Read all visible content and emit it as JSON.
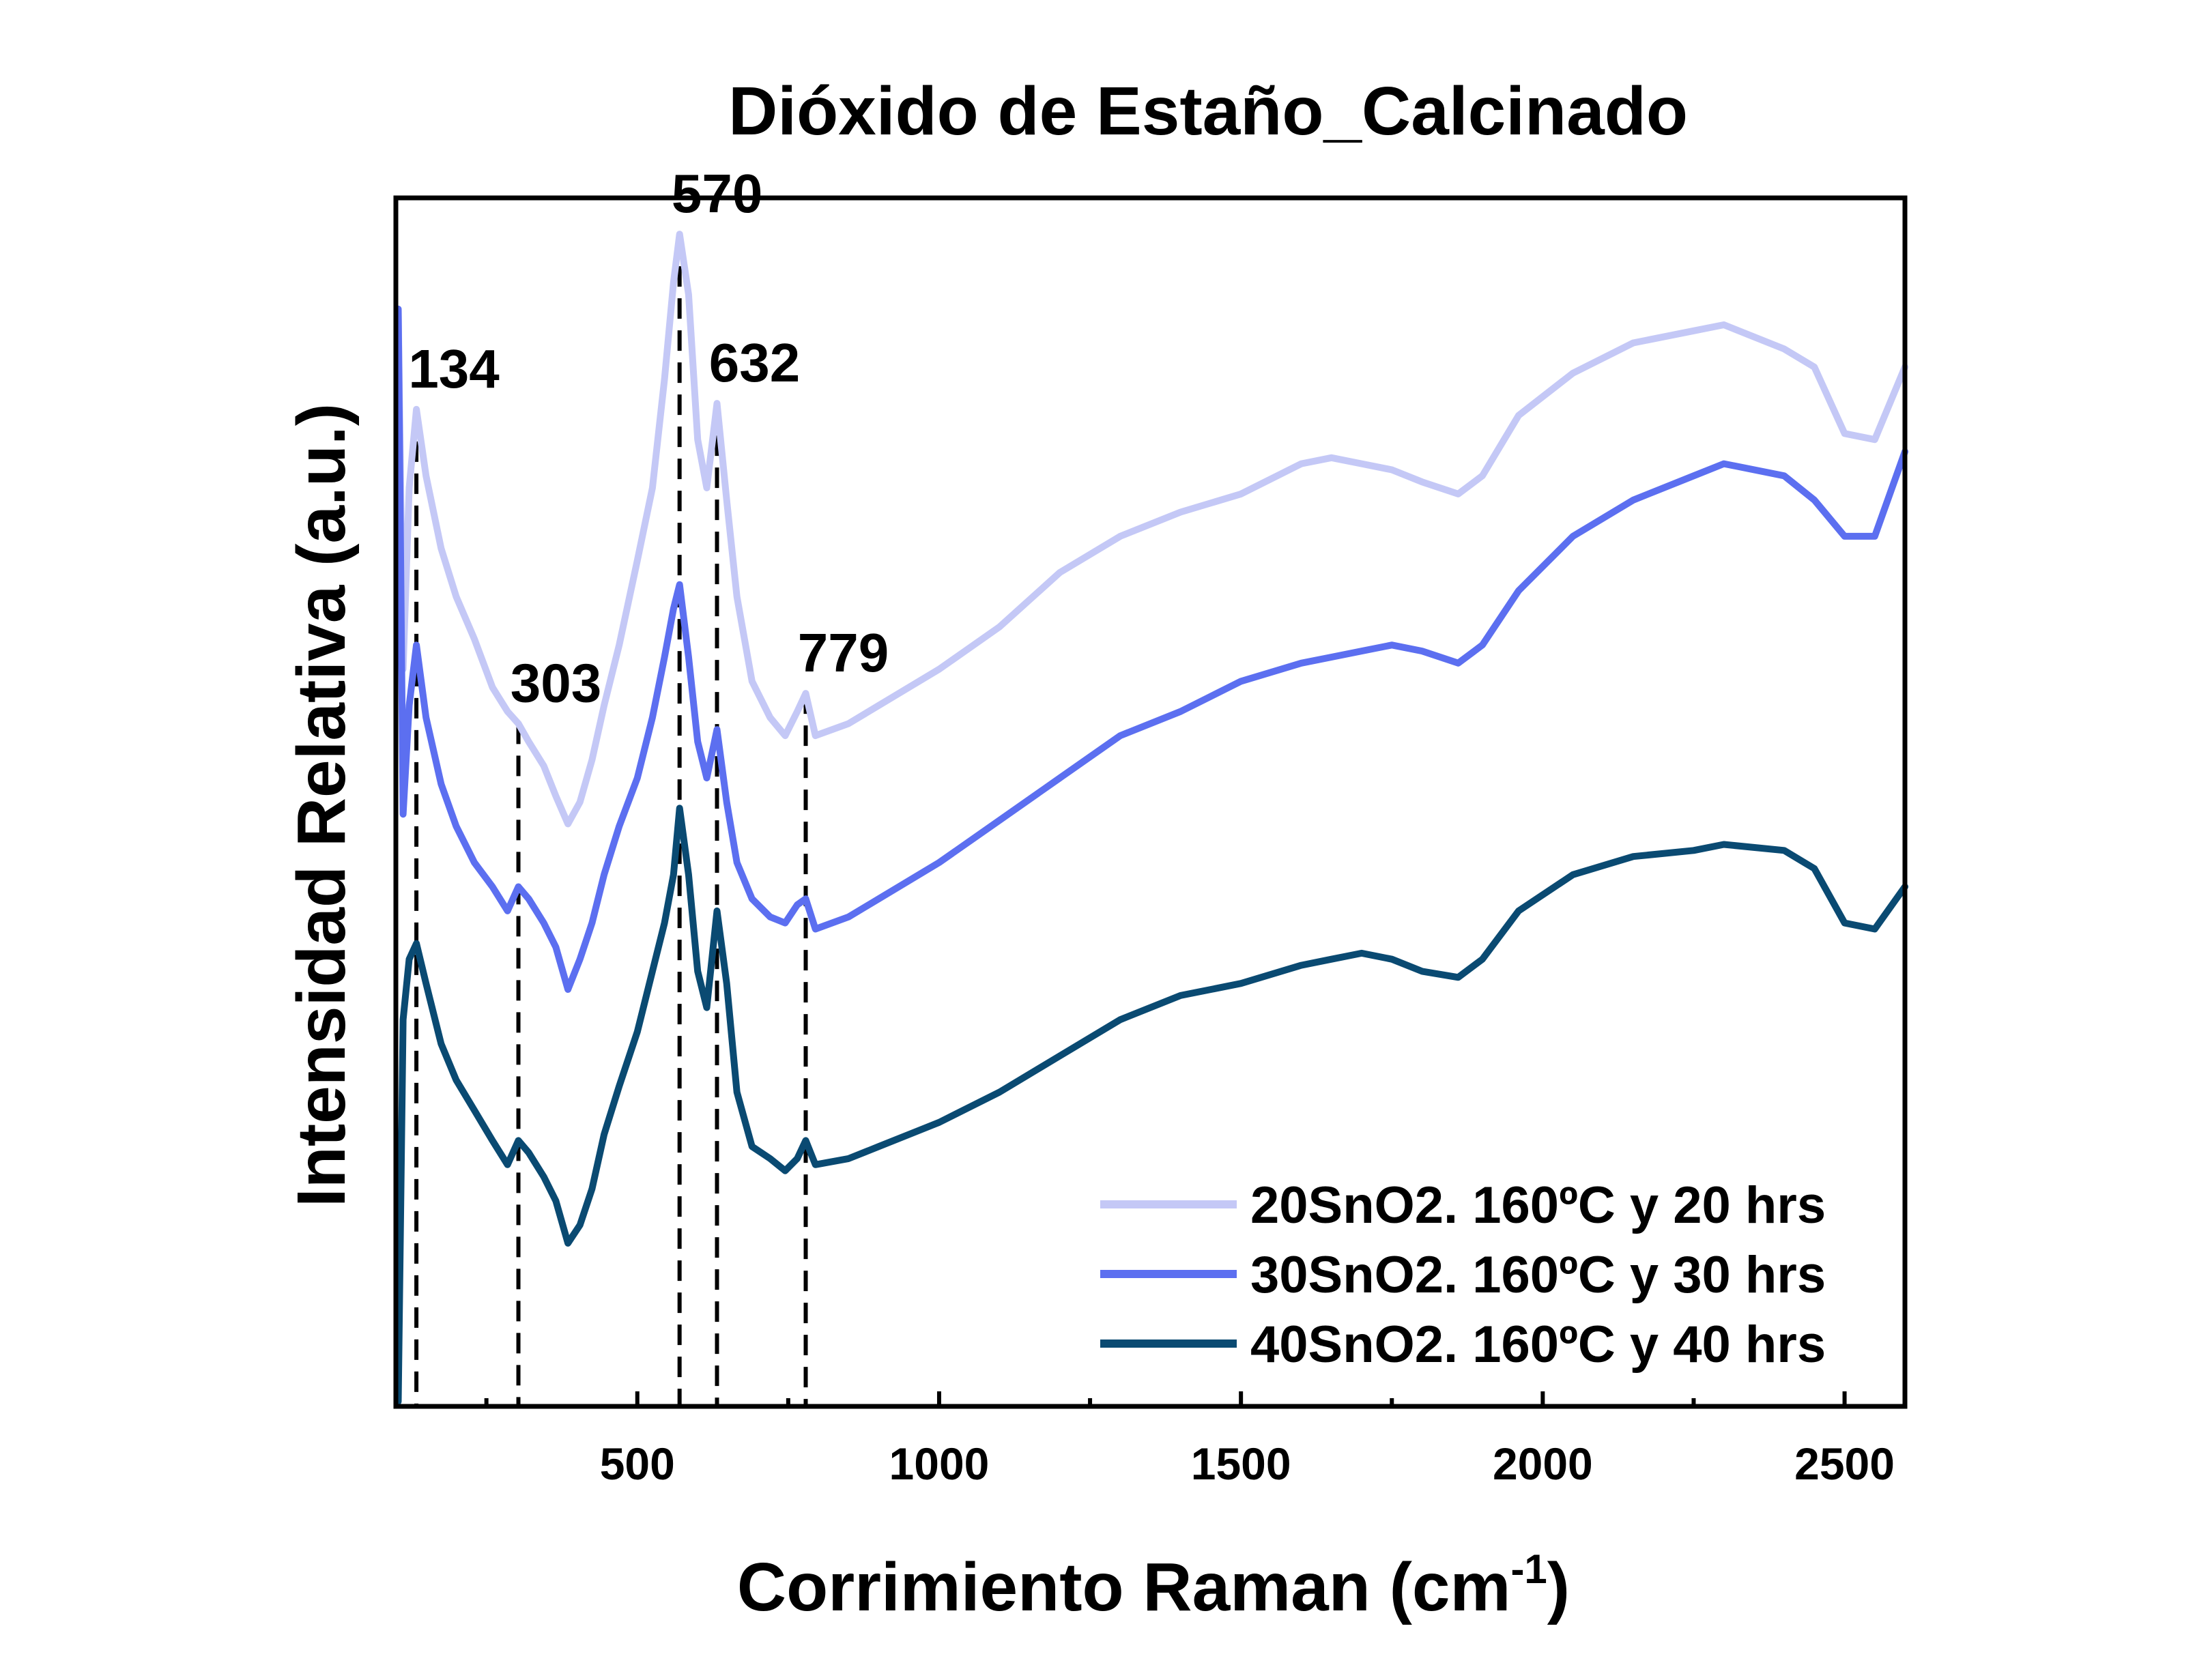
{
  "chart_data": {
    "type": "line",
    "title": "Dióxido de Estaño_Calcinado",
    "xlabel": "Corrimiento Raman (cm",
    "xlabel_sup": "-1",
    "xlabel_end": ")",
    "ylabel": "Intensidad Relativa (a.u.)",
    "xlim": [
      100,
      2600
    ],
    "ylim": [
      0,
      100
    ],
    "yticks_labeled": false,
    "xticks": [
      500,
      1000,
      1500,
      2000,
      2500
    ],
    "xticks_minor": [
      250,
      750,
      1250,
      1750,
      2250
    ],
    "grid": false,
    "legend": {
      "position": "bottom-right"
    },
    "peaks": [
      {
        "x": 134,
        "label": "134"
      },
      {
        "x": 303,
        "label": "303"
      },
      {
        "x": 570,
        "label": "570"
      },
      {
        "x": 632,
        "label": "632"
      },
      {
        "x": 779,
        "label": "779"
      }
    ],
    "series": [
      {
        "name": "20SnO2. 160ºC y 20 hrs",
        "color": "#c4c8f6",
        "points": [
          [
            104,
            90.8
          ],
          [
            112,
            61
          ],
          [
            122,
            76
          ],
          [
            134,
            82.5
          ],
          [
            150,
            77
          ],
          [
            175,
            71
          ],
          [
            200,
            67
          ],
          [
            230,
            63.5
          ],
          [
            260,
            59.5
          ],
          [
            285,
            57.5
          ],
          [
            303,
            56.5
          ],
          [
            320,
            55
          ],
          [
            345,
            53
          ],
          [
            365,
            50.5
          ],
          [
            385,
            48.2
          ],
          [
            405,
            50
          ],
          [
            425,
            53.5
          ],
          [
            445,
            58
          ],
          [
            470,
            63
          ],
          [
            500,
            70
          ],
          [
            525,
            76
          ],
          [
            545,
            85
          ],
          [
            560,
            93
          ],
          [
            570,
            97
          ],
          [
            585,
            92
          ],
          [
            600,
            80
          ],
          [
            615,
            76
          ],
          [
            632,
            83
          ],
          [
            648,
            75
          ],
          [
            665,
            67
          ],
          [
            690,
            60
          ],
          [
            720,
            57
          ],
          [
            745,
            55.5
          ],
          [
            765,
            57.5
          ],
          [
            779,
            59
          ],
          [
            795,
            55.5
          ],
          [
            850,
            56.5
          ],
          [
            900,
            58
          ],
          [
            1000,
            61
          ],
          [
            1100,
            64.5
          ],
          [
            1200,
            69
          ],
          [
            1300,
            72
          ],
          [
            1400,
            74
          ],
          [
            1500,
            75.5
          ],
          [
            1600,
            78
          ],
          [
            1650,
            78.5
          ],
          [
            1700,
            78
          ],
          [
            1750,
            77.5
          ],
          [
            1800,
            76.5
          ],
          [
            1860,
            75.5
          ],
          [
            1900,
            77
          ],
          [
            1960,
            82
          ],
          [
            2050,
            85.5
          ],
          [
            2150,
            88
          ],
          [
            2250,
            89
          ],
          [
            2300,
            89.5
          ],
          [
            2400,
            87.5
          ],
          [
            2450,
            86
          ],
          [
            2500,
            80.5
          ],
          [
            2550,
            80
          ],
          [
            2600,
            86
          ]
        ]
      },
      {
        "name": "30SnO2. 160ºC y 30 hrs",
        "color": "#5c6ff0",
        "points": [
          [
            104,
            90.8
          ],
          [
            112,
            49
          ],
          [
            122,
            58
          ],
          [
            134,
            63
          ],
          [
            150,
            57
          ],
          [
            175,
            51.5
          ],
          [
            200,
            48
          ],
          [
            230,
            45
          ],
          [
            260,
            43
          ],
          [
            285,
            41
          ],
          [
            303,
            43
          ],
          [
            320,
            42
          ],
          [
            345,
            40
          ],
          [
            365,
            38
          ],
          [
            385,
            34.5
          ],
          [
            405,
            37
          ],
          [
            425,
            40
          ],
          [
            445,
            44
          ],
          [
            470,
            48
          ],
          [
            500,
            52
          ],
          [
            525,
            57
          ],
          [
            545,
            62
          ],
          [
            560,
            66
          ],
          [
            570,
            68
          ],
          [
            585,
            62
          ],
          [
            600,
            55
          ],
          [
            615,
            52
          ],
          [
            632,
            56
          ],
          [
            648,
            50
          ],
          [
            665,
            45
          ],
          [
            690,
            42
          ],
          [
            720,
            40.5
          ],
          [
            745,
            40
          ],
          [
            765,
            41.5
          ],
          [
            779,
            42
          ],
          [
            795,
            39.5
          ],
          [
            850,
            40.5
          ],
          [
            900,
            42
          ],
          [
            1000,
            45
          ],
          [
            1100,
            48.5
          ],
          [
            1200,
            52
          ],
          [
            1300,
            55.5
          ],
          [
            1400,
            57.5
          ],
          [
            1500,
            60
          ],
          [
            1600,
            61.5
          ],
          [
            1650,
            62
          ],
          [
            1700,
            62.5
          ],
          [
            1750,
            63
          ],
          [
            1800,
            62.5
          ],
          [
            1860,
            61.5
          ],
          [
            1900,
            63
          ],
          [
            1960,
            67.5
          ],
          [
            2050,
            72
          ],
          [
            2150,
            75
          ],
          [
            2250,
            77
          ],
          [
            2300,
            78
          ],
          [
            2400,
            77
          ],
          [
            2450,
            75
          ],
          [
            2500,
            72
          ],
          [
            2550,
            72
          ],
          [
            2600,
            79
          ]
        ]
      },
      {
        "name": "40SnO2. 160ºC y 40 hrs",
        "color": "#0a4a72",
        "points": [
          [
            104,
            0.4
          ],
          [
            112,
            32
          ],
          [
            122,
            37
          ],
          [
            134,
            38.3
          ],
          [
            150,
            35
          ],
          [
            175,
            30
          ],
          [
            200,
            27
          ],
          [
            230,
            24.5
          ],
          [
            260,
            22
          ],
          [
            285,
            20
          ],
          [
            303,
            22
          ],
          [
            320,
            21
          ],
          [
            345,
            19
          ],
          [
            365,
            17
          ],
          [
            385,
            13.5
          ],
          [
            405,
            15
          ],
          [
            425,
            18
          ],
          [
            445,
            22.5
          ],
          [
            470,
            26.5
          ],
          [
            500,
            31
          ],
          [
            525,
            36
          ],
          [
            545,
            40
          ],
          [
            560,
            44
          ],
          [
            570,
            49.5
          ],
          [
            585,
            44
          ],
          [
            600,
            36
          ],
          [
            615,
            33
          ],
          [
            632,
            41
          ],
          [
            648,
            35
          ],
          [
            665,
            26
          ],
          [
            690,
            21.5
          ],
          [
            720,
            20.5
          ],
          [
            745,
            19.5
          ],
          [
            765,
            20.5
          ],
          [
            779,
            22
          ],
          [
            795,
            20
          ],
          [
            850,
            20.5
          ],
          [
            900,
            21.5
          ],
          [
            1000,
            23.5
          ],
          [
            1100,
            26
          ],
          [
            1200,
            29
          ],
          [
            1300,
            32
          ],
          [
            1400,
            34
          ],
          [
            1500,
            35
          ],
          [
            1600,
            36.5
          ],
          [
            1650,
            37
          ],
          [
            1700,
            37.5
          ],
          [
            1750,
            37
          ],
          [
            1800,
            36
          ],
          [
            1860,
            35.5
          ],
          [
            1900,
            37
          ],
          [
            1960,
            41
          ],
          [
            2050,
            44
          ],
          [
            2150,
            45.5
          ],
          [
            2250,
            46
          ],
          [
            2300,
            46.5
          ],
          [
            2400,
            46
          ],
          [
            2450,
            44.5
          ],
          [
            2500,
            40
          ],
          [
            2550,
            39.5
          ],
          [
            2600,
            43
          ]
        ]
      }
    ]
  }
}
